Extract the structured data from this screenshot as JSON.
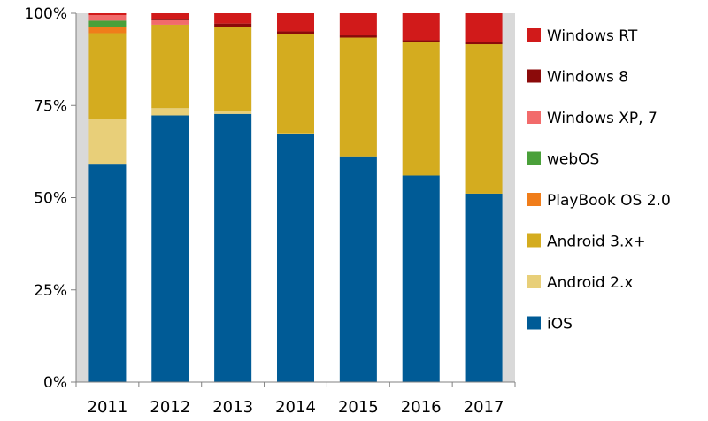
{
  "chart_data": {
    "type": "bar",
    "stacked": true,
    "percent_stacked": true,
    "categories": [
      "2011",
      "2012",
      "2013",
      "2014",
      "2015",
      "2016",
      "2017"
    ],
    "series": [
      {
        "name": "iOS",
        "color": "#005b96",
        "values": [
          59.2,
          72.3,
          72.7,
          67.3,
          61.2,
          56.0,
          51.1
        ]
      },
      {
        "name": "Android 2.x",
        "color": "#e8cf79",
        "values": [
          12.1,
          2.0,
          0.7,
          0.2,
          0.0,
          0.0,
          0.0
        ]
      },
      {
        "name": "Android 3.x+",
        "color": "#d4ac1f",
        "values": [
          23.3,
          22.6,
          23.0,
          26.9,
          32.2,
          36.2,
          40.5
        ]
      },
      {
        "name": "PlayBook OS 2.0",
        "color": "#f07d1a",
        "values": [
          1.7,
          0.0,
          0.0,
          0.0,
          0.0,
          0.0,
          0.0
        ]
      },
      {
        "name": "webOS",
        "color": "#4aa03a",
        "values": [
          1.7,
          0.0,
          0.0,
          0.0,
          0.0,
          0.0,
          0.0
        ]
      },
      {
        "name": "Windows XP, 7",
        "color": "#f26b6b",
        "values": [
          1.5,
          1.2,
          0.0,
          0.0,
          0.0,
          0.0,
          0.0
        ]
      },
      {
        "name": "Windows 8",
        "color": "#8b0a0a",
        "values": [
          0.0,
          0.2,
          0.8,
          0.7,
          0.6,
          0.5,
          0.6
        ]
      },
      {
        "name": "Windows RT",
        "color": "#d11a1a",
        "values": [
          0.5,
          1.7,
          2.8,
          4.9,
          6.0,
          7.3,
          7.8
        ]
      }
    ],
    "y_ticks": [
      "0%",
      "25%",
      "50%",
      "75%",
      "100%"
    ],
    "ylim": [
      0,
      100
    ],
    "grid": false,
    "legend_position": "right",
    "title": "",
    "xlabel": "",
    "ylabel": ""
  }
}
